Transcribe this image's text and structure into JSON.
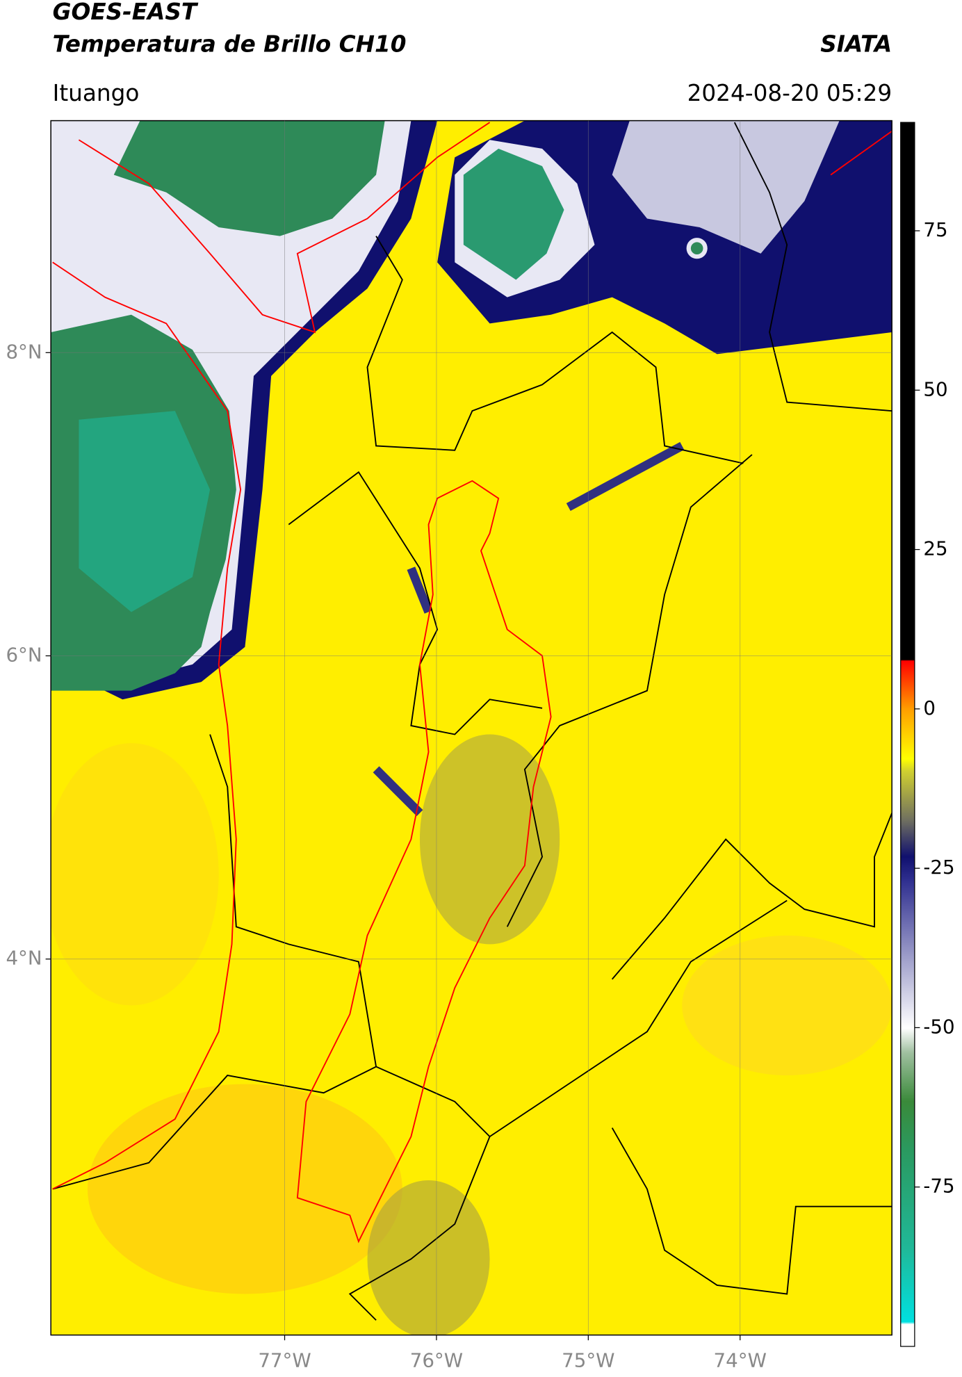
{
  "header": {
    "title": "GOES-EAST",
    "subtitle": "Temperatura de Brillo CH10",
    "credit": "SIATA",
    "location": "Ituango",
    "timestamp": "2024-08-20 05:29"
  },
  "map": {
    "xlim": [
      -78.54,
      -73.0
    ],
    "ylim": [
      1.52,
      9.53
    ],
    "xticks": [
      {
        "value": -77,
        "label": "77°W"
      },
      {
        "value": -76,
        "label": "76°W"
      },
      {
        "value": -75,
        "label": "75°W"
      },
      {
        "value": -74,
        "label": "74°W"
      }
    ],
    "yticks": [
      {
        "value": 8,
        "label": "8°N"
      },
      {
        "value": 6,
        "label": "6°N"
      },
      {
        "value": 4,
        "label": "4°N"
      }
    ],
    "grid": true
  },
  "colorbar": {
    "lim": [
      -100,
      92
    ],
    "ticks": [
      75,
      50,
      25,
      0,
      -25,
      -50,
      -75
    ]
  }
}
